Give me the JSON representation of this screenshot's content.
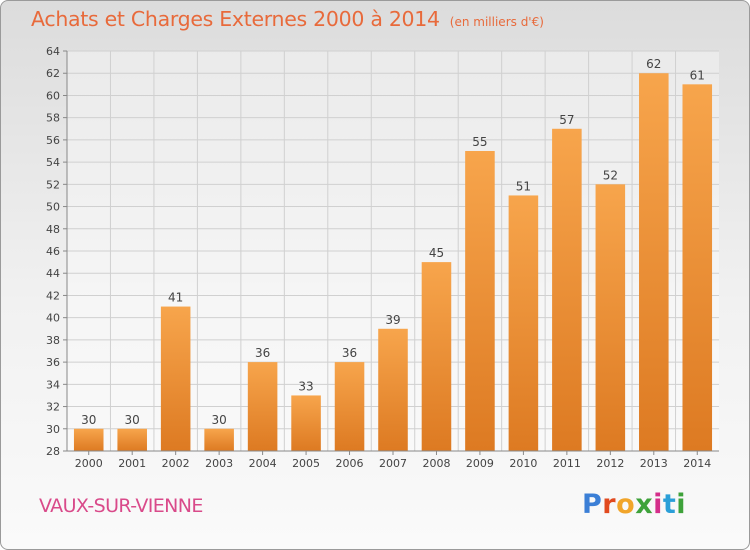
{
  "header": {
    "title": "Achats et Charges Externes 2000 à 2014",
    "subtitle": "(en milliers d'€)"
  },
  "footer": {
    "commune": "VAUX-SUR-VIENNE",
    "logo_text": "Proxiti"
  },
  "colors": {
    "bar_light": "#f7a54c",
    "bar_dark": "#dd7a22",
    "title": "#e86a3b",
    "commune": "#d94a8a"
  },
  "chart_data": {
    "type": "bar",
    "title": "Achats et Charges Externes 2000 à 2014",
    "subtitle": "(en milliers d'€)",
    "categories": [
      "2000",
      "2001",
      "2002",
      "2003",
      "2004",
      "2005",
      "2006",
      "2007",
      "2008",
      "2009",
      "2010",
      "2011",
      "2012",
      "2013",
      "2014"
    ],
    "values": [
      30,
      30,
      41,
      30,
      36,
      33,
      36,
      39,
      45,
      55,
      51,
      57,
      52,
      62,
      61
    ],
    "ylim": [
      28,
      64
    ],
    "yticks": [
      28,
      30,
      32,
      34,
      36,
      38,
      40,
      42,
      44,
      46,
      48,
      50,
      52,
      54,
      56,
      58,
      60,
      62,
      64
    ],
    "grid": true,
    "legend": "none"
  }
}
